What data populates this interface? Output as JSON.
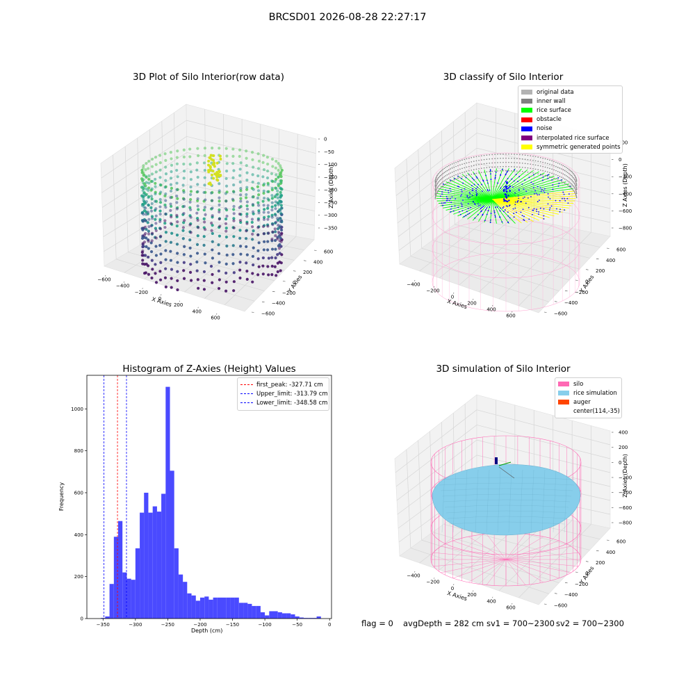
{
  "suptitle": "BRCSD01 2026-08-28 22:27:17",
  "footer": {
    "flag": "flag = 0",
    "avg_depth": "avgDepth = 282 cm",
    "sv1": "sv1 = 700~2300",
    "sv2": "sv2 = 700~2300"
  },
  "panels": {
    "raw": {
      "title": "3D Plot of Silo Interior(row data)",
      "xlabel": "X Axies",
      "ylabel": "Y Axies",
      "zlabel": "Z Axies (Depth)",
      "xticks": [
        "−600",
        "−400",
        "−200",
        "0",
        "200",
        "400",
        "600"
      ],
      "yticks": [
        "−600",
        "−400",
        "−200",
        "0",
        "200",
        "400",
        "600"
      ],
      "zticks": [
        "0",
        "−50",
        "−100",
        "−150",
        "−200",
        "−250",
        "−300",
        "−350"
      ]
    },
    "classify": {
      "title": "3D classify of Silo Interior",
      "xlabel": "X Axies",
      "ylabel": "Y Axies",
      "zlabel": "Z Axies (Depth)",
      "xticks": [
        "−400",
        "−200",
        "0",
        "200",
        "400",
        "600"
      ],
      "yticks": [
        "−600",
        "−400",
        "−200",
        "0",
        "200",
        "400",
        "600"
      ],
      "zticks": [
        "200",
        "0",
        "−200",
        "−400",
        "−600",
        "−800"
      ],
      "legend": [
        {
          "label": "original data",
          "color": "#b3b3b3"
        },
        {
          "label": "inner wall",
          "color": "#808080"
        },
        {
          "label": "rice surface",
          "color": "#00ff00"
        },
        {
          "label": "obstacle",
          "color": "#ff0000"
        },
        {
          "label": "noise",
          "color": "#0000ff"
        },
        {
          "label": "interpolated rice surface",
          "color": "#800080"
        },
        {
          "label": "symmetric generated points",
          "color": "#ffff00"
        }
      ]
    },
    "simulation": {
      "title": "3D simulation of Silo Interior",
      "xlabel": "X Axies",
      "ylabel": "Y Axies",
      "zlabel": "Z Axies (Depth)",
      "xticks": [
        "−400",
        "−200",
        "0",
        "200",
        "400",
        "600"
      ],
      "yticks": [
        "−600",
        "−400",
        "−200",
        "0",
        "200",
        "400",
        "600"
      ],
      "zticks": [
        "400",
        "200",
        "0",
        "−200",
        "−400",
        "−600",
        "−800"
      ],
      "legend": [
        {
          "label": "silo",
          "color": "#ff69b4"
        },
        {
          "label": "rice simulation",
          "color": "#87ceeb"
        },
        {
          "label": "auger",
          "color": "#ff4500"
        },
        {
          "label": "center(114,-35)",
          "color": ""
        }
      ]
    }
  },
  "chart_data": {
    "type": "bar",
    "title": "Histogram of Z-Axies (Height) Values",
    "xlabel": "Depth (cm)",
    "ylabel": "Frequency",
    "xlim": [
      -375,
      3
    ],
    "ylim": [
      0,
      1160
    ],
    "xticks": [
      -350,
      -300,
      -250,
      -200,
      -150,
      -100,
      -50,
      0
    ],
    "yticks": [
      0,
      200,
      400,
      600,
      800,
      1000
    ],
    "bin_width": 6.67,
    "bin_starts": [
      -353.3,
      -346.7,
      -340,
      -333.3,
      -326.7,
      -320,
      -313.3,
      -306.7,
      -300,
      -293.3,
      -286.7,
      -280,
      -273.3,
      -266.7,
      -260,
      -253.3,
      -246.7,
      -240,
      -233.3,
      -226.7,
      -220,
      -213.3,
      -206.7,
      -200,
      -193.3,
      -186.7,
      -180,
      -173.3,
      -166.7,
      -160,
      -153.3,
      -146.7,
      -140,
      -133.3,
      -126.7,
      -120,
      -113.3,
      -106.7,
      -100,
      -93.3,
      -86.7,
      -80,
      -73.3,
      -66.7,
      -60,
      -53.3,
      -46.7,
      -40,
      -33.3,
      -26.7,
      -20
    ],
    "values": [
      3,
      10,
      165,
      390,
      465,
      220,
      190,
      185,
      335,
      505,
      600,
      505,
      535,
      510,
      595,
      1105,
      705,
      335,
      210,
      175,
      120,
      110,
      85,
      100,
      105,
      90,
      100,
      100,
      100,
      100,
      100,
      100,
      75,
      75,
      70,
      60,
      60,
      30,
      15,
      35,
      35,
      30,
      25,
      25,
      20,
      10,
      5,
      3,
      3,
      3,
      10
    ],
    "series_color": "#4a4aff",
    "vlines": [
      {
        "label": "first_peak: -327.71 cm",
        "x": -327.71,
        "color": "#ff0000"
      },
      {
        "label": "Upper_limit: -313.79 cm",
        "x": -313.79,
        "color": "#0000ff"
      },
      {
        "label": "Lower_limit: -348.58 cm",
        "x": -348.58,
        "color": "#0000ff"
      }
    ],
    "legend_position": "upper right"
  }
}
